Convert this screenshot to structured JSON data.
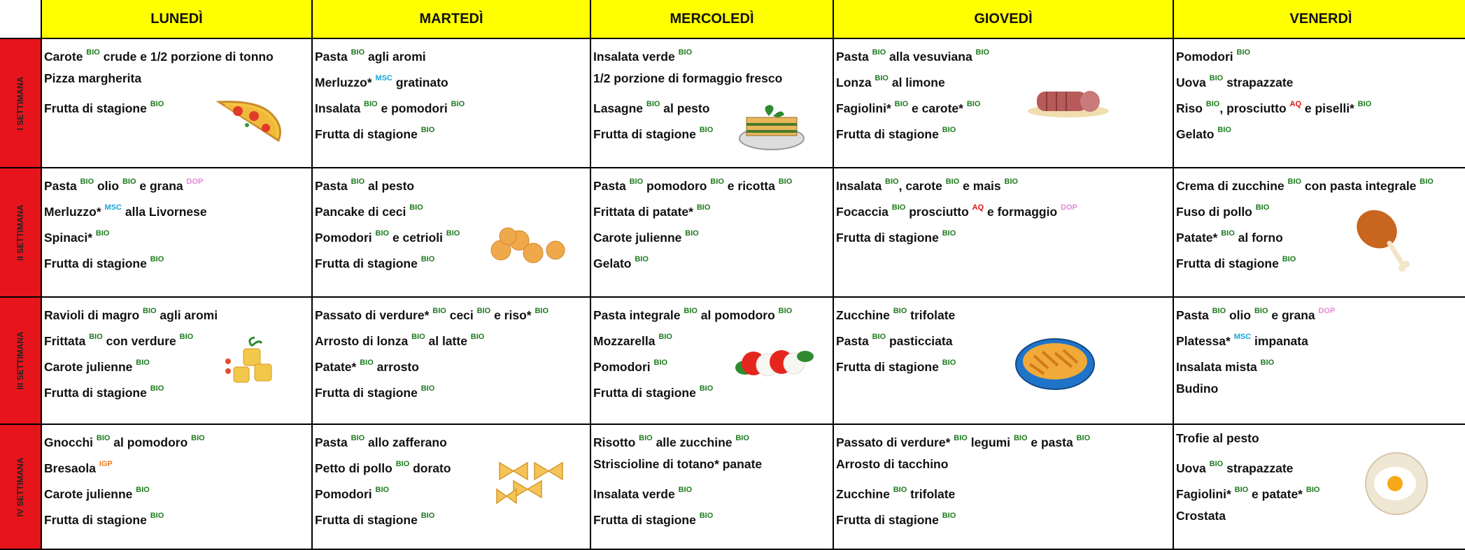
{
  "tag_colors": {
    "BIO": "#1e7b1e",
    "MSC": "#1aa3d9",
    "DOP": "#e58ad6",
    "AQ": "#e01010",
    "IGP": "#f07a1a"
  },
  "header": {
    "days": [
      "LUNEDÌ",
      "MARTEDÌ",
      "MERCOLEDÌ",
      "GIOVEDÌ",
      "VENERDÌ"
    ]
  },
  "rows": [
    {
      "label": "I SETTIMANA",
      "cells": [
        {
          "lines": [
            [
              "Carote ",
              {
                "tag": "BIO"
              },
              " crude e 1/2 porzione di tonno"
            ],
            [
              "Pizza margherita"
            ],
            [
              "Frutta di stagione ",
              {
                "tag": "BIO"
              }
            ]
          ]
        },
        {
          "lines": [
            [
              "Pasta ",
              {
                "tag": "BIO"
              },
              " agli aromi"
            ],
            [
              "Merluzzo* ",
              {
                "tag": "MSC"
              },
              " gratinato"
            ],
            [
              "Insalata ",
              {
                "tag": "BIO"
              },
              " e pomodori ",
              {
                "tag": "BIO"
              }
            ],
            [
              "Frutta di stagione ",
              {
                "tag": "BIO"
              }
            ]
          ]
        },
        {
          "lines": [
            [
              "Insalata verde ",
              {
                "tag": "BIO"
              }
            ],
            [
              "1/2 porzione di formaggio fresco"
            ],
            [
              "Lasagne ",
              {
                "tag": "BIO"
              },
              " al pesto"
            ],
            [
              "Frutta di stagione ",
              {
                "tag": "BIO"
              }
            ]
          ]
        },
        {
          "lines": [
            [
              "Pasta ",
              {
                "tag": "BIO"
              },
              " alla vesuviana ",
              {
                "tag": "BIO"
              }
            ],
            [
              "Lonza ",
              {
                "tag": "BIO"
              },
              " al limone"
            ],
            [
              "Fagiolini* ",
              {
                "tag": "BIO"
              },
              " e carote* ",
              {
                "tag": "BIO"
              }
            ],
            [
              "Frutta di stagione ",
              {
                "tag": "BIO"
              }
            ]
          ]
        },
        {
          "lines": [
            [
              "Pomodori ",
              {
                "tag": "BIO"
              }
            ],
            [
              "Uova ",
              {
                "tag": "BIO"
              },
              " strapazzate"
            ],
            [
              "Riso ",
              {
                "tag": "BIO"
              },
              ", prosciutto ",
              {
                "tag": "AQ"
              },
              " e piselli* ",
              {
                "tag": "BIO"
              }
            ],
            [
              "Gelato ",
              {
                "tag": "BIO"
              }
            ]
          ]
        }
      ]
    },
    {
      "label": "II SETTIMANA",
      "cells": [
        {
          "lines": [
            [
              "Pasta ",
              {
                "tag": "BIO"
              },
              " olio ",
              {
                "tag": "BIO"
              },
              " e grana ",
              {
                "tag": "DOP"
              }
            ],
            [
              "Merluzzo* ",
              {
                "tag": "MSC"
              },
              " alla Livornese"
            ],
            [
              "Spinaci* ",
              {
                "tag": "BIO"
              }
            ],
            [
              "Frutta di stagione ",
              {
                "tag": "BIO"
              }
            ]
          ]
        },
        {
          "lines": [
            [
              "Pasta ",
              {
                "tag": "BIO"
              },
              " al pesto"
            ],
            [
              "Pancake di ceci ",
              {
                "tag": "BIO"
              }
            ],
            [
              "Pomodori ",
              {
                "tag": "BIO"
              },
              " e cetrioli ",
              {
                "tag": "BIO"
              }
            ],
            [
              "Frutta di stagione ",
              {
                "tag": "BIO"
              }
            ]
          ]
        },
        {
          "lines": [
            [
              "Pasta ",
              {
                "tag": "BIO"
              },
              " pomodoro ",
              {
                "tag": "BIO"
              },
              " e ricotta ",
              {
                "tag": "BIO"
              }
            ],
            [
              "Frittata di patate* ",
              {
                "tag": "BIO"
              }
            ],
            [
              "Carote julienne ",
              {
                "tag": "BIO"
              }
            ],
            [
              "Gelato ",
              {
                "tag": "BIO"
              }
            ]
          ]
        },
        {
          "lines": [
            [
              "Insalata ",
              {
                "tag": "BIO"
              },
              ", carote ",
              {
                "tag": "BIO"
              },
              " e mais ",
              {
                "tag": "BIO"
              }
            ],
            [
              "Focaccia ",
              {
                "tag": "BIO"
              },
              " prosciutto ",
              {
                "tag": "AQ"
              },
              " e formaggio ",
              {
                "tag": "DOP"
              }
            ],
            [
              "Frutta di stagione ",
              {
                "tag": "BIO"
              }
            ]
          ]
        },
        {
          "lines": [
            [
              "Crema di zucchine ",
              {
                "tag": "BIO"
              },
              " con pasta integrale ",
              {
                "tag": "BIO"
              }
            ],
            [
              "Fuso di pollo ",
              {
                "tag": "BIO"
              }
            ],
            [
              "Patate* ",
              {
                "tag": "BIO"
              },
              " al forno"
            ],
            [
              "Frutta di stagione ",
              {
                "tag": "BIO"
              }
            ]
          ]
        }
      ]
    },
    {
      "label": "III SETTIMANA",
      "cells": [
        {
          "lines": [
            [
              "Ravioli di magro ",
              {
                "tag": "BIO"
              },
              " agli aromi"
            ],
            [
              "Frittata ",
              {
                "tag": "BIO"
              },
              " con verdure ",
              {
                "tag": "BIO"
              }
            ],
            [
              "Carote julienne ",
              {
                "tag": "BIO"
              }
            ],
            [
              "Frutta di stagione ",
              {
                "tag": "BIO"
              }
            ]
          ]
        },
        {
          "lines": [
            [
              "Passato di verdure* ",
              {
                "tag": "BIO"
              },
              " ceci ",
              {
                "tag": "BIO"
              },
              " e riso* ",
              {
                "tag": "BIO"
              }
            ],
            [
              "Arrosto di lonza ",
              {
                "tag": "BIO"
              },
              " al latte ",
              {
                "tag": "BIO"
              }
            ],
            [
              "Patate* ",
              {
                "tag": "BIO"
              },
              " arrosto"
            ],
            [
              "Frutta di stagione ",
              {
                "tag": "BIO"
              }
            ]
          ]
        },
        {
          "lines": [
            [
              "Pasta integrale ",
              {
                "tag": "BIO"
              },
              " al pomodoro ",
              {
                "tag": "BIO"
              }
            ],
            [
              "Mozzarella ",
              {
                "tag": "BIO"
              }
            ],
            [
              "Pomodori ",
              {
                "tag": "BIO"
              }
            ],
            [
              "Frutta di stagione ",
              {
                "tag": "BIO"
              }
            ]
          ]
        },
        {
          "lines": [
            [
              "Zucchine ",
              {
                "tag": "BIO"
              },
              " trifolate"
            ],
            [
              "Pasta ",
              {
                "tag": "BIO"
              },
              " pasticciata"
            ],
            [
              "Frutta di stagione ",
              {
                "tag": "BIO"
              }
            ]
          ]
        },
        {
          "lines": [
            [
              "Pasta ",
              {
                "tag": "BIO"
              },
              " olio ",
              {
                "tag": "BIO"
              },
              " e grana ",
              {
                "tag": "DOP"
              }
            ],
            [
              "Platessa* ",
              {
                "tag": "MSC"
              },
              " impanata"
            ],
            [
              "Insalata mista ",
              {
                "tag": "BIO"
              }
            ],
            [
              "Budino"
            ]
          ]
        }
      ]
    },
    {
      "label": "IV SETTIMANA",
      "cells": [
        {
          "lines": [
            [
              "Gnocchi ",
              {
                "tag": "BIO"
              },
              " al pomodoro ",
              {
                "tag": "BIO"
              }
            ],
            [
              "Bresaola ",
              {
                "tag": "IGP"
              }
            ],
            [
              "Carote julienne ",
              {
                "tag": "BIO"
              }
            ],
            [
              "Frutta di stagione ",
              {
                "tag": "BIO"
              }
            ]
          ]
        },
        {
          "lines": [
            [
              "Pasta ",
              {
                "tag": "BIO"
              },
              " allo zafferano"
            ],
            [
              "Petto di pollo ",
              {
                "tag": "BIO"
              },
              " dorato"
            ],
            [
              "Pomodori ",
              {
                "tag": "BIO"
              }
            ],
            [
              "Frutta di stagione ",
              {
                "tag": "BIO"
              }
            ]
          ]
        },
        {
          "lines": [
            [
              "Risotto ",
              {
                "tag": "BIO"
              },
              " alle zucchine ",
              {
                "tag": "BIO"
              }
            ],
            [
              "Striscioline di totano* panate"
            ],
            [
              "Insalata verde ",
              {
                "tag": "BIO"
              }
            ],
            [
              "Frutta di stagione ",
              {
                "tag": "BIO"
              }
            ]
          ]
        },
        {
          "lines": [
            [
              "Passato di verdure* ",
              {
                "tag": "BIO"
              },
              " legumi ",
              {
                "tag": "BIO"
              },
              " e pasta ",
              {
                "tag": "BIO"
              }
            ],
            [
              "Arrosto di tacchino"
            ],
            [
              "Zucchine ",
              {
                "tag": "BIO"
              },
              " trifolate"
            ],
            [
              "Frutta di stagione ",
              {
                "tag": "BIO"
              }
            ]
          ]
        },
        {
          "lines": [
            [
              "Trofie al pesto"
            ],
            [
              "Uova ",
              {
                "tag": "BIO"
              },
              " strapazzate"
            ],
            [
              "Fagiolini* ",
              {
                "tag": "BIO"
              },
              " e patate* ",
              {
                "tag": "BIO"
              }
            ],
            [
              "Crostata"
            ]
          ]
        }
      ]
    }
  ]
}
